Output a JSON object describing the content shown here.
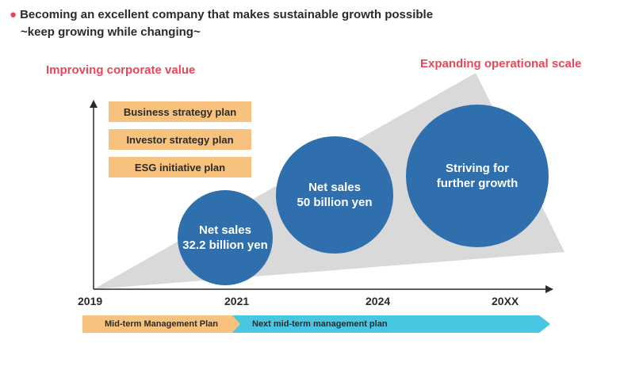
{
  "headline": {
    "line1": "Becoming an excellent company that makes sustainable growth possible",
    "line2": "~keep growing while changing~"
  },
  "left_label": "Improving corporate value",
  "right_label": "Expanding operational scale",
  "plans": [
    "Business strategy plan",
    "Investor strategy plan",
    "ESG initiative plan"
  ],
  "circles": [
    {
      "line1": "Net sales",
      "line2": "32.2 billion yen"
    },
    {
      "line1": "Net sales",
      "line2": "50 billion yen"
    },
    {
      "line1": "Striving for",
      "line2": "further growth"
    }
  ],
  "years": [
    "2019",
    "2021",
    "2024",
    "20XX"
  ],
  "bands": {
    "midterm": "Mid-term Management Plan",
    "next": "Next mid-term management plan"
  },
  "colors": {
    "accent_red": "#e8475b",
    "circle_blue": "#2f6fae",
    "plan_orange": "#f6c27e",
    "band_cyan": "#48c6e2",
    "triangle_gray": "#d9d9d9"
  }
}
